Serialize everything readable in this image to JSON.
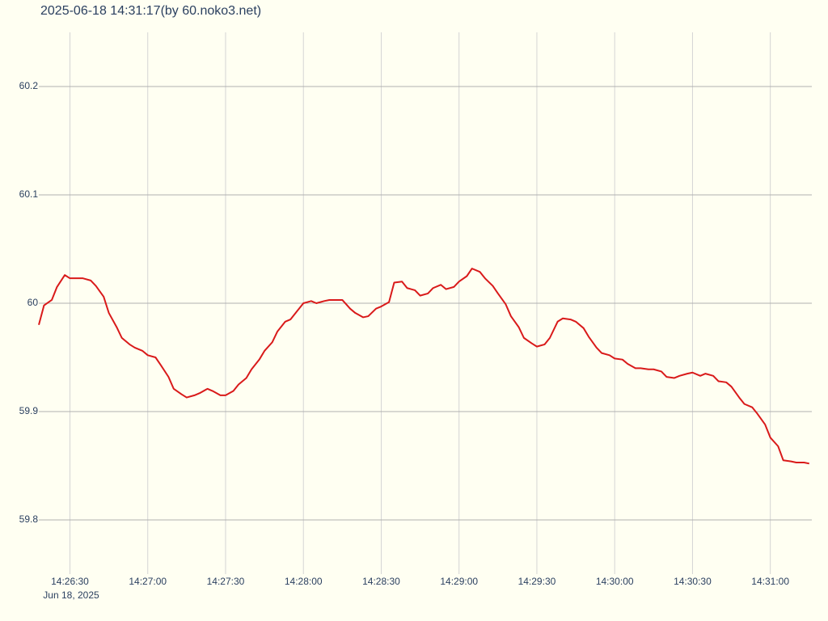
{
  "chart_data": {
    "type": "line",
    "title": "2025-06-18 14:31:17(by 60.noko3.net)",
    "x_date_label": "Jun 18, 2025",
    "xlim": [
      "14:26:18",
      "14:31:16"
    ],
    "xticks": [
      "14:26:30",
      "14:27:00",
      "14:27:30",
      "14:28:00",
      "14:28:30",
      "14:29:00",
      "14:29:30",
      "14:30:00",
      "14:30:30",
      "14:31:00"
    ],
    "ylim": [
      59.75,
      60.25
    ],
    "yticks": [
      59.8,
      59.9,
      60,
      60.1,
      60.2
    ],
    "grid": true,
    "x": [
      "14:26:18",
      "14:26:20",
      "14:26:23",
      "14:26:25",
      "14:26:28",
      "14:26:30",
      "14:26:33",
      "14:26:35",
      "14:26:38",
      "14:26:40",
      "14:26:43",
      "14:26:45",
      "14:26:48",
      "14:26:50",
      "14:26:53",
      "14:26:55",
      "14:26:58",
      "14:27:00",
      "14:27:03",
      "14:27:05",
      "14:27:08",
      "14:27:10",
      "14:27:13",
      "14:27:15",
      "14:27:18",
      "14:27:20",
      "14:27:23",
      "14:27:25",
      "14:27:28",
      "14:27:30",
      "14:27:33",
      "14:27:35",
      "14:27:38",
      "14:27:40",
      "14:27:43",
      "14:27:45",
      "14:27:48",
      "14:27:50",
      "14:27:53",
      "14:27:55",
      "14:27:58",
      "14:28:00",
      "14:28:03",
      "14:28:05",
      "14:28:08",
      "14:28:10",
      "14:28:13",
      "14:28:15",
      "14:28:18",
      "14:28:20",
      "14:28:23",
      "14:28:25",
      "14:28:28",
      "14:28:30",
      "14:28:33",
      "14:28:35",
      "14:28:38",
      "14:28:40",
      "14:28:43",
      "14:28:45",
      "14:28:48",
      "14:28:50",
      "14:28:53",
      "14:28:55",
      "14:28:58",
      "14:29:00",
      "14:29:03",
      "14:29:05",
      "14:29:08",
      "14:29:10",
      "14:29:13",
      "14:29:15",
      "14:29:18",
      "14:29:20",
      "14:29:23",
      "14:29:25",
      "14:29:28",
      "14:29:30",
      "14:29:33",
      "14:29:35",
      "14:29:38",
      "14:29:40",
      "14:29:43",
      "14:29:45",
      "14:29:48",
      "14:29:50",
      "14:29:53",
      "14:29:55",
      "14:29:58",
      "14:30:00",
      "14:30:03",
      "14:30:05",
      "14:30:08",
      "14:30:10",
      "14:30:13",
      "14:30:15",
      "14:30:18",
      "14:30:20",
      "14:30:23",
      "14:30:25",
      "14:30:28",
      "14:30:30",
      "14:30:33",
      "14:30:35",
      "14:30:38",
      "14:30:40",
      "14:30:43",
      "14:30:45",
      "14:30:48",
      "14:30:50",
      "14:30:53",
      "14:30:55",
      "14:30:58",
      "14:31:00",
      "14:31:03",
      "14:31:05",
      "14:31:08",
      "14:31:10",
      "14:31:13",
      "14:31:15"
    ],
    "series": [
      {
        "color": "#d91a1a",
        "values": [
          59.98,
          59.998,
          60.003,
          60.015,
          60.026,
          60.023,
          60.023,
          60.023,
          60.021,
          60.016,
          60.006,
          59.991,
          59.978,
          59.968,
          59.962,
          59.959,
          59.956,
          59.952,
          59.95,
          59.943,
          59.932,
          59.921,
          59.916,
          59.913,
          59.915,
          59.917,
          59.921,
          59.919,
          59.915,
          59.915,
          59.919,
          59.925,
          59.931,
          59.939,
          59.948,
          59.956,
          59.964,
          59.974,
          59.983,
          59.985,
          59.994,
          60.0,
          60.002,
          60.0,
          60.002,
          60.003,
          60.003,
          60.003,
          59.995,
          59.991,
          59.987,
          59.988,
          59.995,
          59.997,
          60.001,
          60.019,
          60.02,
          60.014,
          60.012,
          60.007,
          60.009,
          60.014,
          60.017,
          60.013,
          60.015,
          60.02,
          60.025,
          60.032,
          60.029,
          60.023,
          60.016,
          60.009,
          59.999,
          59.988,
          59.978,
          59.968,
          59.963,
          59.96,
          59.962,
          59.968,
          59.983,
          59.986,
          59.985,
          59.983,
          59.977,
          59.969,
          59.959,
          59.954,
          59.952,
          59.949,
          59.948,
          59.944,
          59.94,
          59.94,
          59.939,
          59.939,
          59.937,
          59.932,
          59.931,
          59.933,
          59.935,
          59.936,
          59.933,
          59.935,
          59.933,
          59.928,
          59.927,
          59.923,
          59.913,
          59.907,
          59.904,
          59.898,
          59.888,
          59.876,
          59.868,
          59.855,
          59.854,
          59.853,
          59.853,
          59.852
        ]
      }
    ]
  }
}
